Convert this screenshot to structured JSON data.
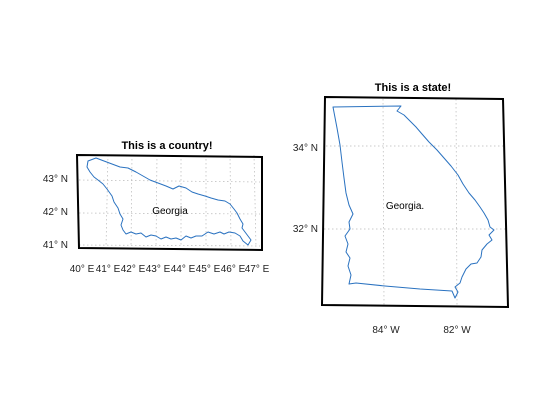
{
  "maps": [
    {
      "title": "This is a country!",
      "region_label": "Georgia",
      "lat_ticks": [
        {
          "text": "43° N"
        },
        {
          "text": "42° N"
        },
        {
          "text": "41° N"
        }
      ],
      "lon_ticks": [
        {
          "text": "40° E"
        },
        {
          "text": "41° E"
        },
        {
          "text": "42° E"
        },
        {
          "text": "43° E"
        },
        {
          "text": "44° E"
        },
        {
          "text": "45° E"
        },
        {
          "text": "46° E"
        },
        {
          "text": "47° E"
        }
      ]
    },
    {
      "title": "This is a state!",
      "region_label": "Georgia.",
      "lat_ticks": [
        {
          "text": "34° N"
        },
        {
          "text": "32° N"
        }
      ],
      "lon_ticks": [
        {
          "text": "84° W"
        },
        {
          "text": "82° W"
        }
      ]
    }
  ],
  "colors": {
    "border": "#2a72c0",
    "frame": "#000000",
    "grid": "#b8b8b8"
  }
}
